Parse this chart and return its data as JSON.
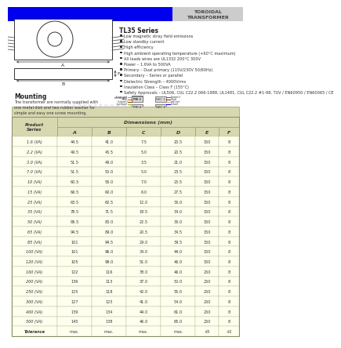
{
  "title": "TOROIDAL\nTRANSFORMER",
  "series_title": "TL35 Series",
  "features": [
    "Low magnetic stray field emissions",
    "Low standby current",
    "High efficiency",
    "High ambient operating temperature (+60°C maximum)",
    "All leads wires are UL1332 200°C 300V",
    "Power – 1.6VA to 500VA",
    "Primary – Dual primary (115V/230V 50/60Hz)",
    "Secondary – Series or parallel",
    "Dielectric Strength – 4000Vrms",
    "Insulation Class – Class F (155°C)",
    "Safety Approvals – UL506, CUL C22.2 066-1988, UL1481, CUL C22.2 #1-98, TUV / EN60950 / EN60065 / CE"
  ],
  "mounting_text": "The transformer are normally supplied with\none metal disk and two rubber washer for\nsimple and easy one screw mounting.",
  "table_header": [
    "Product\nSeries",
    "A",
    "B",
    "C",
    "D",
    "E",
    "F"
  ],
  "table_col_header": "Dimensions (mm)",
  "table_data": [
    [
      "1.6 (VA)",
      "44.5",
      "41.0",
      "7.5",
      "20.5",
      "150",
      "8"
    ],
    [
      "2.2 (VA)",
      "49.5",
      "45.5",
      "5.0",
      "20.5",
      "150",
      "8"
    ],
    [
      "3.0 (VA)",
      "51.5",
      "49.0",
      "3.5",
      "21.0",
      "150",
      "8"
    ],
    [
      "7.0 (VA)",
      "51.5",
      "50.0",
      "5.0",
      "23.5",
      "150",
      "8"
    ],
    [
      "10 (VA)",
      "60.5",
      "56.0",
      "7.0",
      "25.5",
      "150",
      "8"
    ],
    [
      "15 (VA)",
      "66.5",
      "60.0",
      "6.0",
      "27.5",
      "150",
      "8"
    ],
    [
      "25 (VA)",
      "63.5",
      "62.5",
      "12.0",
      "36.0",
      "150",
      "8"
    ],
    [
      "35 (VA)",
      "78.5",
      "71.5",
      "18.5",
      "34.0",
      "150",
      "8"
    ],
    [
      "50 (VA)",
      "86.5",
      "80.0",
      "22.5",
      "36.0",
      "150",
      "8"
    ],
    [
      "65 (VA)",
      "94.5",
      "89.0",
      "20.5",
      "34.5",
      "150",
      "8"
    ],
    [
      "85 (VA)",
      "101",
      "94.5",
      "29.0",
      "39.5",
      "150",
      "8"
    ],
    [
      "100 (VA)",
      "101",
      "96.0",
      "34.0",
      "44.0",
      "150",
      "8"
    ],
    [
      "120 (VA)",
      "105",
      "99.0",
      "51.0",
      "46.0",
      "150",
      "8"
    ],
    [
      "160 (VA)",
      "122",
      "116",
      "38.0",
      "46.0",
      "250",
      "8"
    ],
    [
      "200 (VA)",
      "136",
      "113",
      "37.0",
      "50.0",
      "250",
      "8"
    ],
    [
      "250 (VA)",
      "125",
      "118",
      "42.0",
      "55.0",
      "250",
      "8"
    ],
    [
      "300 (VA)",
      "127",
      "123",
      "41.0",
      "54.0",
      "250",
      "8"
    ],
    [
      "400 (VA)",
      "139",
      "134",
      "44.0",
      "61.0",
      "250",
      "8"
    ],
    [
      "500 (VA)",
      "145",
      "138",
      "46.0",
      "65.0",
      "250",
      "8"
    ],
    [
      "Tolerance",
      "max.",
      "max.",
      "max.",
      "max.",
      "±5",
      "±2"
    ]
  ],
  "header_blue": "#0000ee",
  "header_gray": "#cccccc",
  "table_row_bg": "#ffffee",
  "table_hdr_bg": "#d8d8b0",
  "body_bg": "#ffffff",
  "wire_colors_left": [
    "#ff8800",
    "#cc0000",
    "#884400",
    "#cccc00"
  ],
  "wire_labels_left": [
    "(orange)",
    "(red)",
    "(brown)",
    "(yellow)"
  ],
  "wire_colors_right": [
    "#00aa00",
    "#ff0000",
    "#ffffff",
    "#0000aa"
  ],
  "wire_labels_right": [
    "(green)",
    "(red)",
    "(white)",
    "(blue)"
  ]
}
